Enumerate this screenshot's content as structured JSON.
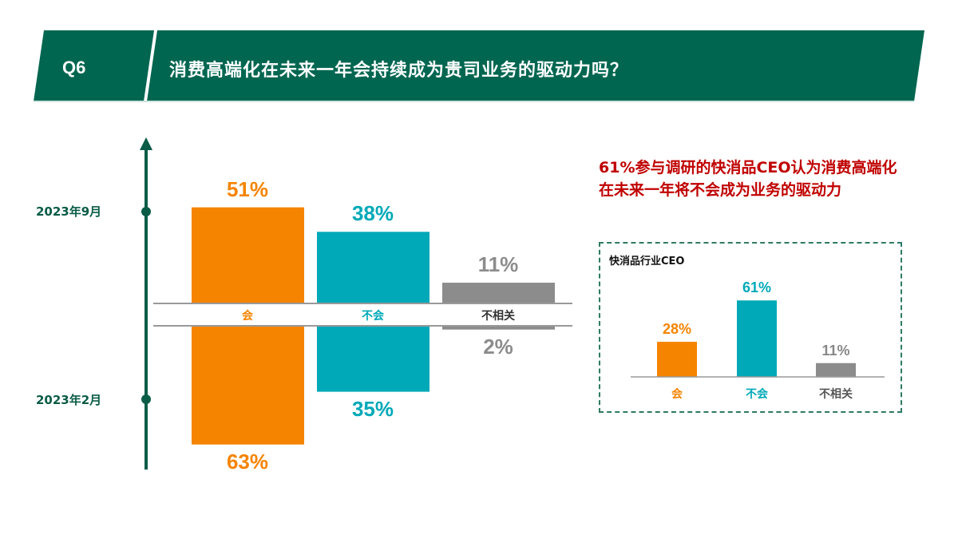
{
  "header": {
    "question": "Q6",
    "title": "消费高端化在未来一年会持续成为贵司业务的驱动力吗？"
  },
  "colors": {
    "green": "#006650",
    "orange": "#F58400",
    "teal": "#00A9B8",
    "gray": "#8C8C8C",
    "red": "#C00000"
  },
  "chart_data": [
    {
      "type": "bar",
      "title": "",
      "categories": [
        "会",
        "不会",
        "不相关"
      ],
      "series": [
        {
          "name": "2023年9月",
          "values": [
            51,
            38,
            11
          ],
          "labels": [
            "51%",
            "38%",
            "11%"
          ]
        },
        {
          "name": "2023年2月",
          "values": [
            63,
            35,
            2
          ],
          "labels": [
            "63%",
            "35%",
            "2%"
          ]
        }
      ],
      "ylim": [
        0,
        70
      ]
    },
    {
      "type": "bar",
      "title": "快消品行业CEO",
      "categories": [
        "会",
        "不会",
        "不相关"
      ],
      "values": [
        28,
        61,
        11
      ],
      "labels": [
        "28%",
        "61%",
        "11%"
      ],
      "ylim": [
        0,
        70
      ]
    }
  ],
  "note": "61%参与调研的快消品CEO认为消费高端化在未来一年将不会成为业务的驱动力"
}
